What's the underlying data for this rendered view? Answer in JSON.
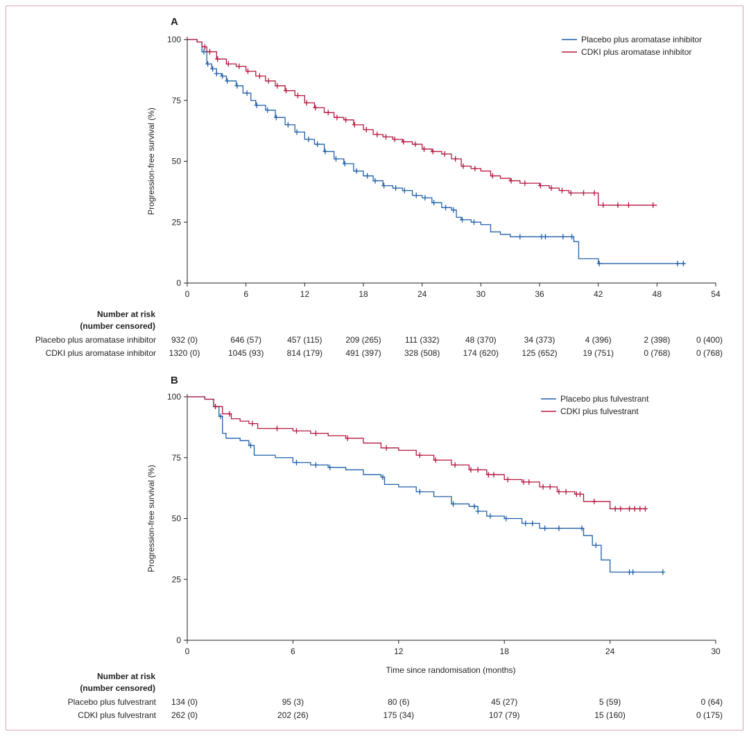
{
  "colors": {
    "placebo": "#1f5fa6",
    "cdki": "#b3163f",
    "axis": "#231f20",
    "frame": "#d9a3ae"
  },
  "chart_data": [
    {
      "type": "line",
      "panel": "A",
      "ylabel": "Progression-free survival (%)",
      "xlabel": "",
      "xlim": [
        0,
        54
      ],
      "ylim": [
        0,
        100
      ],
      "xticks": [
        0,
        6,
        12,
        18,
        24,
        30,
        36,
        42,
        48,
        54
      ],
      "yticks": [
        0,
        25,
        50,
        75,
        100
      ],
      "legend": [
        "Placebo plus aromatase inhibitor",
        "CDKI plus aromatase inhibitor"
      ],
      "series": [
        {
          "name": "Placebo plus aromatase inhibitor",
          "color_key": "placebo",
          "x": [
            0,
            1,
            1.5,
            2,
            2.5,
            3,
            3.5,
            4,
            5,
            5.7,
            6.5,
            7,
            8,
            9,
            10,
            11,
            12,
            13,
            14,
            15,
            16,
            17,
            18,
            19,
            20,
            21,
            22,
            23,
            24,
            25,
            26,
            27,
            27.5,
            28,
            29,
            30,
            31,
            32,
            33,
            34,
            36,
            37,
            38,
            39.5,
            40,
            42,
            45,
            48,
            50.8
          ],
          "y": [
            100,
            99,
            95,
            90,
            88,
            86,
            85,
            83,
            81,
            78,
            75,
            73,
            71,
            68,
            65,
            62,
            59,
            57,
            54,
            51,
            49,
            46,
            44,
            42,
            40,
            39,
            38,
            36,
            35,
            33,
            31,
            30,
            27,
            26,
            25,
            24,
            21,
            20,
            19,
            19,
            19,
            19,
            19,
            17,
            10,
            8,
            8,
            8,
            8
          ],
          "censored_x": [
            1.7,
            2.1,
            2.6,
            3,
            3.6,
            4.1,
            5.1,
            6.1,
            7.1,
            8.2,
            9.1,
            10.3,
            11.2,
            12.4,
            13.3,
            14.1,
            15.2,
            16.1,
            17.3,
            18.4,
            19.2,
            20.1,
            21.3,
            22.2,
            23.4,
            24.3,
            25.2,
            26.4,
            27.2,
            28.1,
            29.3,
            34,
            36.2,
            36.6,
            38.4,
            39.3,
            42.1,
            50.1,
            50.7
          ]
        },
        {
          "name": "CDKI plus aromatase inhibitor",
          "color_key": "cdki",
          "x": [
            0,
            1,
            1.5,
            2,
            3,
            4,
            5,
            6,
            7,
            8,
            9,
            10,
            11,
            12,
            13,
            14,
            15,
            16,
            17,
            18,
            19,
            20,
            21,
            22,
            23,
            24,
            25,
            26,
            27,
            28,
            29,
            30,
            31,
            32,
            33,
            34,
            35,
            36,
            37,
            38,
            39,
            40,
            41,
            42,
            48
          ],
          "y": [
            100,
            99,
            97,
            95,
            92,
            90,
            89,
            87,
            85,
            83,
            81,
            79,
            77,
            74,
            72,
            70,
            68,
            67,
            65,
            63,
            61,
            60,
            59,
            58,
            57,
            55,
            54,
            53,
            51,
            48,
            47,
            46,
            44,
            43,
            42,
            41,
            41,
            40,
            39,
            38,
            37,
            37,
            37,
            32,
            32
          ],
          "censored_x": [
            1.8,
            2.3,
            3.1,
            4.2,
            5.3,
            6.2,
            7.4,
            8.3,
            9.2,
            10.1,
            11.3,
            12.2,
            13.1,
            14.4,
            15.3,
            16.2,
            17.1,
            18.3,
            19.4,
            20.3,
            21.2,
            22.1,
            23.3,
            24.2,
            25.1,
            26.3,
            27.4,
            28.2,
            29.4,
            31.2,
            33.1,
            34.5,
            36.1,
            37.2,
            38.3,
            39.2,
            40.5,
            41.6,
            42.5,
            44,
            45.1,
            47.6
          ]
        }
      ],
      "risk_header": [
        "Number at risk",
        "(number censored)"
      ],
      "risk_rows": [
        {
          "label": "Placebo plus aromatase inhibitor",
          "values": [
            "932 (0)",
            "646 (57)",
            "457 (115)",
            "209 (265)",
            "111 (332)",
            "48 (370)",
            "34 (373)",
            "4 (396)",
            "2 (398)",
            "0 (400)"
          ]
        },
        {
          "label": "CDKI plus aromatase inhibitor",
          "values": [
            "1320 (0)",
            "1045 (93)",
            "814 (179)",
            "491 (397)",
            "328 (508)",
            "174 (620)",
            "125 (652)",
            "19 (751)",
            "0 (768)",
            "0 (768)"
          ]
        }
      ]
    },
    {
      "type": "line",
      "panel": "B",
      "ylabel": "Progression-free survival (%)",
      "xlabel": "Time since randomisation (months)",
      "xlim": [
        0,
        30
      ],
      "ylim": [
        0,
        100
      ],
      "xticks": [
        0,
        6,
        12,
        18,
        24,
        30
      ],
      "yticks": [
        0,
        25,
        50,
        75,
        100
      ],
      "legend": [
        "Placebo plus fulvestrant",
        "CDKI plus fulvestrant"
      ],
      "series": [
        {
          "name": "Placebo plus fulvestrant",
          "color_key": "placebo",
          "x": [
            0,
            1,
            1.5,
            1.8,
            2,
            2.2,
            3,
            3.5,
            3.8,
            5,
            6,
            7,
            8,
            9,
            10,
            11,
            11.2,
            12,
            13,
            14,
            15,
            16,
            16.5,
            17,
            18,
            19,
            20,
            21,
            22,
            22.5,
            23,
            23.5,
            24,
            27
          ],
          "y": [
            100,
            99,
            96,
            92,
            85,
            83,
            82,
            80,
            76,
            75,
            73,
            72,
            71,
            70,
            68,
            67,
            64,
            63,
            61,
            59,
            56,
            55,
            53,
            51,
            50,
            48,
            46,
            46,
            46,
            43,
            39,
            33,
            28,
            28
          ],
          "censored_x": [
            1.9,
            3.6,
            6.2,
            7.3,
            8.1,
            11.1,
            13.2,
            15.1,
            16.3,
            16.5,
            17.2,
            18.1,
            19.2,
            19.6,
            20.3,
            21.1,
            22.4,
            23.2,
            25.1,
            25.3,
            27
          ]
        },
        {
          "name": "CDKI plus fulvestrant",
          "color_key": "cdki",
          "x": [
            0,
            1,
            1.5,
            2,
            2.5,
            3,
            3.5,
            4,
            5,
            6,
            7,
            8,
            9,
            10,
            11,
            12,
            13,
            14,
            15,
            16,
            17,
            18,
            19,
            20,
            21,
            22,
            22.5,
            23,
            23.5,
            24,
            26
          ],
          "y": [
            100,
            99,
            96,
            93,
            91,
            90,
            89,
            87,
            87,
            86,
            85,
            84,
            83,
            81,
            79,
            78,
            76,
            74,
            72,
            70,
            68,
            66,
            65,
            63,
            61,
            60,
            57,
            57,
            57,
            54,
            54
          ],
          "censored_x": [
            1.6,
            2.4,
            3.7,
            5.1,
            6.2,
            7.3,
            9.1,
            11.3,
            13.2,
            14.1,
            15.2,
            16.1,
            16.5,
            17.1,
            17.4,
            18.2,
            19.1,
            19.4,
            20.2,
            20.6,
            21.1,
            21.5,
            22.1,
            22.3,
            23.1,
            24.3,
            24.6,
            25.1,
            25.4,
            25.7,
            26
          ]
        }
      ],
      "risk_header": [
        "Number at risk",
        "(number censored)"
      ],
      "risk_rows": [
        {
          "label": "Placebo plus fulvestrant",
          "values": [
            "134 (0)",
            "95 (3)",
            "80 (6)",
            "45 (27)",
            "5 (59)",
            "0 (64)"
          ]
        },
        {
          "label": "CDKI plus fulvestrant",
          "values": [
            "262 (0)",
            "202 (26)",
            "175 (34)",
            "107 (79)",
            "15 (160)",
            "0 (175)"
          ]
        }
      ]
    }
  ]
}
